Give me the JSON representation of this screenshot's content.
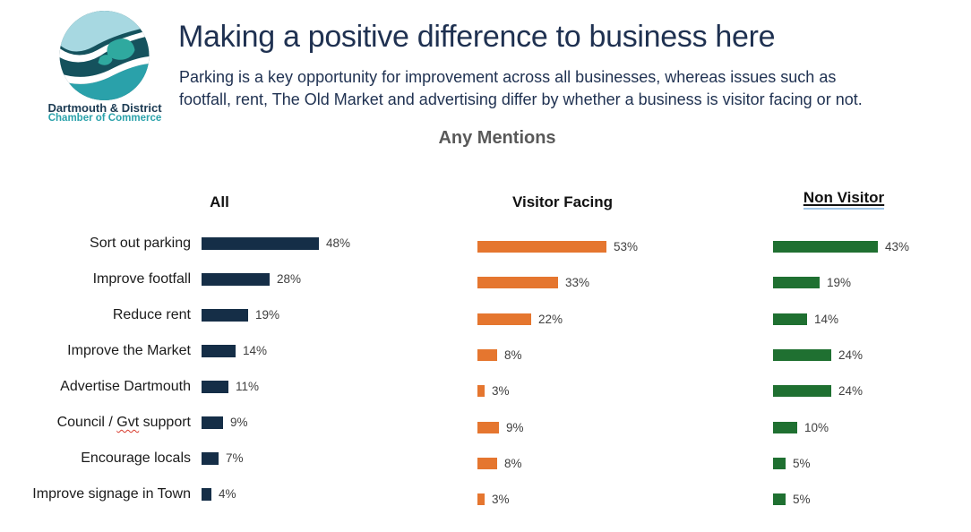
{
  "logo": {
    "line1": "Dartmouth & District",
    "line2": "Chamber of Commerce",
    "colors": {
      "dark_teal": "#15525D",
      "light_blue": "#A7D8E1",
      "teal": "#2AA1AA",
      "leaf": "#2FA99F",
      "text_dark": "#1C3B53",
      "text_teal": "#2BA2AB"
    }
  },
  "header": {
    "title": "Making a positive difference to business here",
    "title_color": "#1F3151",
    "subtitle_lines": [
      "Parking is a key opportunity for improvement across all businesses, whereas issues such as",
      "footfall, rent, The Old Market and advertising differ by whether a business is visitor facing or not."
    ]
  },
  "chart_data": {
    "type": "bar",
    "orientation": "horizontal",
    "title": "Any Mentions",
    "title_color": "#595959",
    "grid": false,
    "legend": "column-headers",
    "data_labels": true,
    "value_suffix": "%",
    "xlim": [
      0,
      60
    ],
    "categories": [
      "Sort out parking",
      "Improve footfall",
      "Reduce rent",
      "Improve the Market",
      "Advertise Dartmouth",
      "Council / Gvt support",
      "Encourage locals",
      "Improve signage in Town"
    ],
    "series": [
      {
        "name": "All",
        "color": "#152E47",
        "values": [
          48,
          28,
          19,
          14,
          11,
          9,
          7,
          4
        ]
      },
      {
        "name": "Visitor Facing",
        "color": "#E5762F",
        "values": [
          53,
          33,
          22,
          8,
          3,
          9,
          8,
          3
        ]
      },
      {
        "name": "Non Visitor",
        "color": "#1F7031",
        "values": [
          43,
          19,
          14,
          24,
          24,
          10,
          5,
          5
        ],
        "header_underlined": true
      }
    ],
    "annotations": {
      "misspelled_word": "Gvt",
      "spellcheck_color": "#D83B2D"
    }
  }
}
